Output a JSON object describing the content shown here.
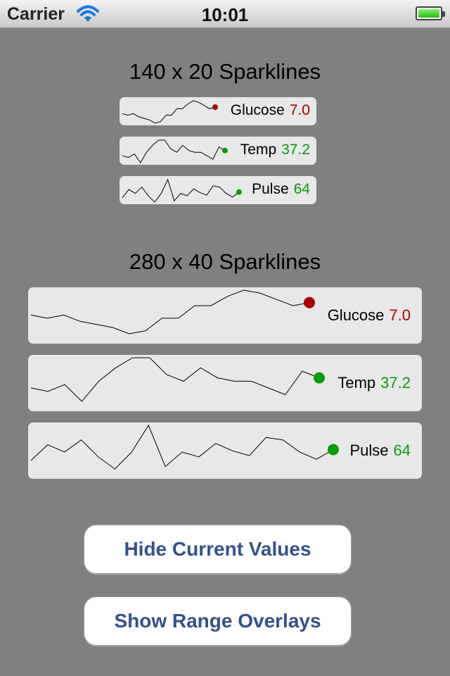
{
  "status_bar": {
    "carrier": "Carrier",
    "time": "10:01"
  },
  "colors": {
    "glucose": "#a80000",
    "temp": "#0c9a0c",
    "pulse": "#0c9a0c",
    "line": "#000000",
    "button_text": "#34518a"
  },
  "small_section": {
    "title": "140 x 20 Sparklines"
  },
  "large_section": {
    "title": "280 x 40 Sparklines"
  },
  "sparklines": [
    {
      "id": "glucose",
      "name": "Glucose",
      "value": "7.0",
      "color_key": "glucose",
      "data": [
        6.6,
        6.5,
        6.6,
        6.4,
        6.3,
        6.2,
        6.0,
        6.1,
        6.5,
        6.5,
        6.9,
        6.9,
        7.2,
        7.4,
        7.3,
        7.1,
        6.9,
        7.0
      ]
    },
    {
      "id": "temp",
      "name": "Temp",
      "value": "37.2",
      "color_key": "temp",
      "data": [
        36.9,
        36.8,
        37.0,
        36.5,
        37.1,
        37.5,
        37.8,
        37.8,
        37.3,
        37.1,
        37.5,
        37.2,
        37.1,
        37.1,
        36.9,
        36.7,
        37.4,
        37.2
      ]
    },
    {
      "id": "pulse",
      "name": "Pulse",
      "value": "64",
      "color_key": "pulse",
      "data": [
        55,
        68,
        62,
        72,
        58,
        48,
        62,
        84,
        50,
        62,
        58,
        69,
        63,
        59,
        74,
        72,
        62,
        56,
        64
      ]
    }
  ],
  "buttons": {
    "hide_values": "Hide Current Values",
    "show_ranges": "Show Range Overlays"
  }
}
